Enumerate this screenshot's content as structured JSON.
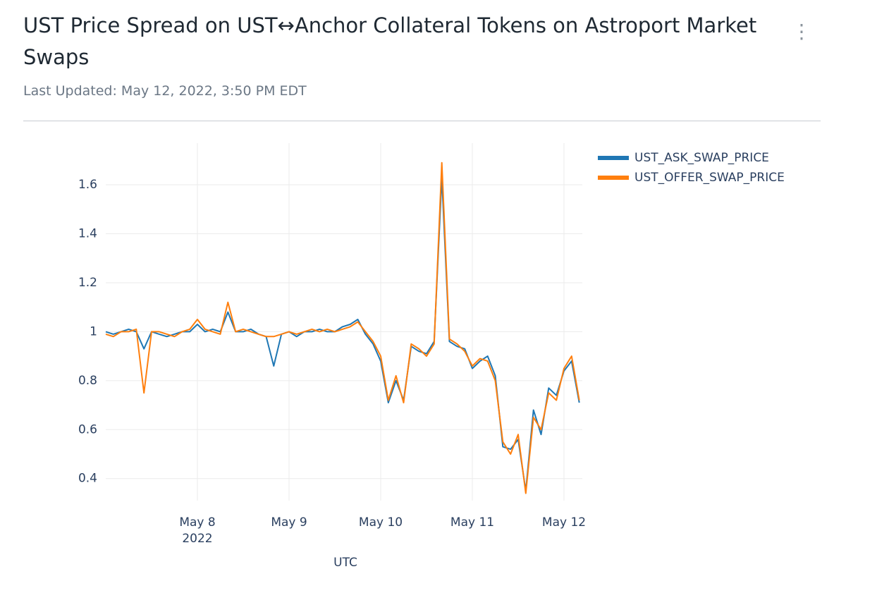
{
  "chart_data": {
    "type": "line",
    "title": "UST Price Spread on UST↔Anchor Collateral Tokens on Astroport Market Swaps",
    "subtitle": "Last Updated: May 12, 2022, 3:50 PM EDT",
    "x_label": "UTC",
    "x": [
      "2022-05-07T00:00",
      "2022-05-07T02:00",
      "2022-05-07T04:00",
      "2022-05-07T06:00",
      "2022-05-07T08:00",
      "2022-05-07T10:00",
      "2022-05-07T12:00",
      "2022-05-07T14:00",
      "2022-05-07T16:00",
      "2022-05-07T18:00",
      "2022-05-07T20:00",
      "2022-05-07T22:00",
      "2022-05-08T00:00",
      "2022-05-08T02:00",
      "2022-05-08T04:00",
      "2022-05-08T06:00",
      "2022-05-08T08:00",
      "2022-05-08T10:00",
      "2022-05-08T12:00",
      "2022-05-08T14:00",
      "2022-05-08T16:00",
      "2022-05-08T18:00",
      "2022-05-08T20:00",
      "2022-05-08T22:00",
      "2022-05-09T00:00",
      "2022-05-09T02:00",
      "2022-05-09T04:00",
      "2022-05-09T06:00",
      "2022-05-09T08:00",
      "2022-05-09T10:00",
      "2022-05-09T12:00",
      "2022-05-09T14:00",
      "2022-05-09T16:00",
      "2022-05-09T18:00",
      "2022-05-09T20:00",
      "2022-05-09T22:00",
      "2022-05-10T00:00",
      "2022-05-10T02:00",
      "2022-05-10T04:00",
      "2022-05-10T06:00",
      "2022-05-10T08:00",
      "2022-05-10T10:00",
      "2022-05-10T12:00",
      "2022-05-10T14:00",
      "2022-05-10T16:00",
      "2022-05-10T18:00",
      "2022-05-10T20:00",
      "2022-05-10T22:00",
      "2022-05-11T00:00",
      "2022-05-11T02:00",
      "2022-05-11T04:00",
      "2022-05-11T06:00",
      "2022-05-11T08:00",
      "2022-05-11T10:00",
      "2022-05-11T12:00",
      "2022-05-11T14:00",
      "2022-05-11T16:00",
      "2022-05-11T18:00",
      "2022-05-11T20:00",
      "2022-05-11T22:00",
      "2022-05-12T00:00",
      "2022-05-12T02:00",
      "2022-05-12T04:00"
    ],
    "series": [
      {
        "name": "UST_ASK_SWAP_PRICE",
        "color": "#1f77b4",
        "values": [
          1.0,
          0.99,
          1.0,
          1.01,
          1.0,
          0.93,
          1.0,
          0.99,
          0.98,
          0.99,
          1.0,
          1.0,
          1.03,
          1.0,
          1.01,
          1.0,
          1.08,
          1.0,
          1.0,
          1.01,
          0.99,
          0.98,
          0.86,
          0.99,
          1.0,
          0.98,
          1.0,
          1.0,
          1.01,
          1.0,
          1.0,
          1.02,
          1.03,
          1.05,
          0.99,
          0.95,
          0.88,
          0.71,
          0.8,
          0.72,
          0.94,
          0.92,
          0.91,
          0.96,
          1.63,
          0.96,
          0.94,
          0.93,
          0.85,
          0.88,
          0.9,
          0.82,
          0.53,
          0.52,
          0.56,
          0.35,
          0.68,
          0.58,
          0.77,
          0.74,
          0.84,
          0.88,
          0.71
        ]
      },
      {
        "name": "UST_OFFER_SWAP_PRICE",
        "color": "#ff7f0e",
        "values": [
          0.99,
          0.98,
          1.0,
          1.0,
          1.01,
          0.75,
          1.0,
          1.0,
          0.99,
          0.98,
          1.0,
          1.01,
          1.05,
          1.01,
          1.0,
          0.99,
          1.12,
          1.0,
          1.01,
          1.0,
          0.99,
          0.98,
          0.98,
          0.99,
          1.0,
          0.99,
          1.0,
          1.01,
          1.0,
          1.01,
          1.0,
          1.01,
          1.02,
          1.04,
          1.0,
          0.96,
          0.9,
          0.72,
          0.82,
          0.71,
          0.95,
          0.93,
          0.9,
          0.95,
          1.69,
          0.97,
          0.95,
          0.92,
          0.86,
          0.89,
          0.88,
          0.8,
          0.55,
          0.5,
          0.58,
          0.34,
          0.65,
          0.6,
          0.75,
          0.72,
          0.85,
          0.9,
          0.72
        ]
      }
    ],
    "xlim": [
      "2022-05-07T00:00",
      "2022-05-12T04:48"
    ],
    "xticks": [
      {
        "value": "2022-05-08T00:00",
        "label": "May 8",
        "sublabel": "2022"
      },
      {
        "value": "2022-05-09T00:00",
        "label": "May 9"
      },
      {
        "value": "2022-05-10T00:00",
        "label": "May 10"
      },
      {
        "value": "2022-05-11T00:00",
        "label": "May 11"
      },
      {
        "value": "2022-05-12T00:00",
        "label": "May 12"
      }
    ],
    "ylim": [
      0.31,
      1.77
    ],
    "yticks": [
      0.4,
      0.6,
      0.8,
      1,
      1.2,
      1.4,
      1.6
    ],
    "grid": true,
    "legend": "top-right"
  }
}
